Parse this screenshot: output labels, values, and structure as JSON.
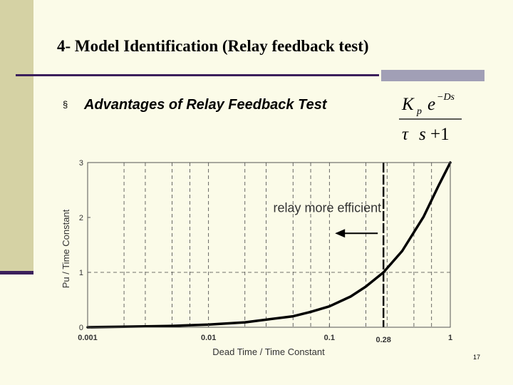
{
  "slide": {
    "title": "4- Model Identification (Relay feedback test)",
    "bullet_glyph": "§",
    "subtitle": "Advantages of Relay Feedback Test",
    "page_number": "17",
    "colors": {
      "background": "#fbfbe8",
      "left_bar": "#d5d2a4",
      "rule_dark": "#3b1f5b",
      "rule_light": "#a19fb6"
    }
  },
  "formula": {
    "gain": "K",
    "gain_subscript": "p",
    "exp_base": "e",
    "exponent": "−Ds",
    "tau": "τ",
    "s": "s",
    "plus_one": "+1"
  },
  "chart_data": {
    "type": "line",
    "xscale": "log",
    "xlim": [
      0.001,
      1
    ],
    "ylim": [
      0,
      3
    ],
    "xlabel": "Dead Time / Time Constant",
    "ylabel": "Pu / Time Constant",
    "x_ticks": [
      {
        "value": 0.001,
        "label": "0.001"
      },
      {
        "value": 0.01,
        "label": "0.01"
      },
      {
        "value": 0.1,
        "label": "0.1"
      },
      {
        "value": 1,
        "label": "1"
      }
    ],
    "y_ticks": [
      {
        "value": 0,
        "label": "0"
      },
      {
        "value": 1,
        "label": "1"
      },
      {
        "value": 2,
        "label": "2"
      },
      {
        "value": 3,
        "label": "3"
      }
    ],
    "minor_x_grid": [
      0.002,
      0.003,
      0.005,
      0.007,
      0.02,
      0.03,
      0.05,
      0.07,
      0.2,
      0.3,
      0.5,
      0.7
    ],
    "grid": true,
    "series": [
      {
        "x": [
          0.001,
          0.002,
          0.005,
          0.01,
          0.02,
          0.05,
          0.07,
          0.1,
          0.15,
          0.2,
          0.28,
          0.4,
          0.6,
          0.8,
          1.0
        ],
        "y": [
          0.0,
          0.01,
          0.025,
          0.05,
          0.09,
          0.2,
          0.28,
          0.38,
          0.56,
          0.74,
          1.0,
          1.39,
          2.01,
          2.58,
          3.0
        ]
      }
    ],
    "vline": {
      "x": 0.28,
      "label": "0.28"
    },
    "hline": {
      "y": 1
    },
    "annotation": {
      "text": "relay more efficient",
      "x": 0.28,
      "y": 2.1
    }
  }
}
